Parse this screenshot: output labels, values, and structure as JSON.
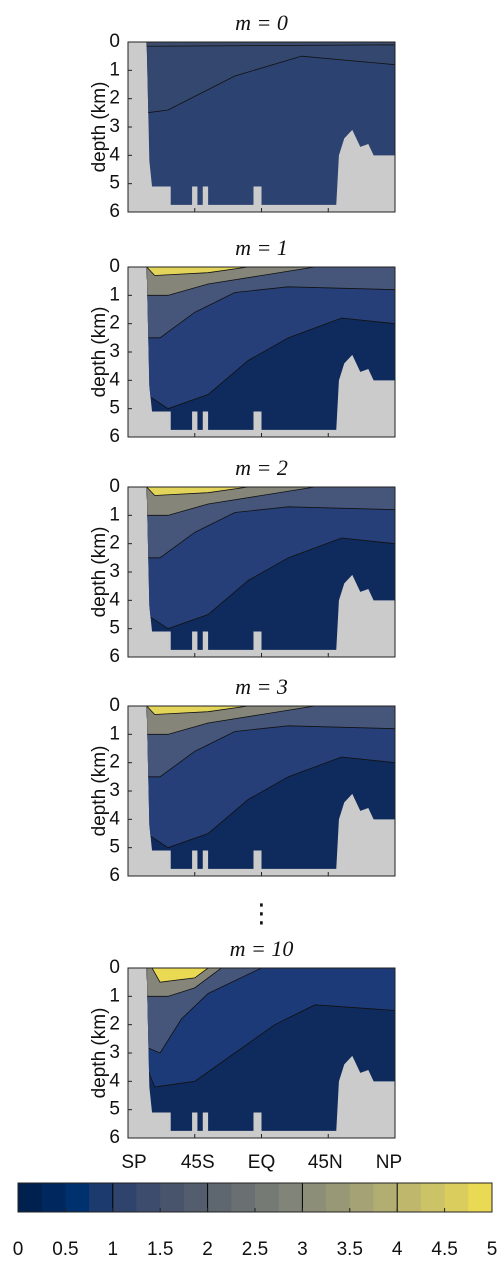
{
  "panels": [
    {
      "title": "m = 0"
    },
    {
      "title": "m = 1"
    },
    {
      "title": "m = 2"
    },
    {
      "title": "m = 3"
    },
    {
      "title": "m = 10"
    }
  ],
  "ellipsis": "⋮",
  "y_label": "depth (km)",
  "ylim": [
    0,
    6
  ],
  "yticks": [
    0,
    1,
    2,
    3,
    4,
    5,
    6
  ],
  "x_categories": [
    "SP",
    "45S",
    "EQ",
    "45N",
    "NP"
  ],
  "colorbar": {
    "lim": [
      0,
      5
    ],
    "ticks": [
      0,
      0.5,
      1,
      1.5,
      2,
      2.5,
      3,
      3.5,
      4,
      4.5,
      5
    ],
    "contour_levels": [
      1,
      2,
      3,
      4
    ],
    "colors": [
      "#00204d",
      "#00285f",
      "#00316f",
      "#1c3a6e",
      "#2f436d",
      "#3d4c6c",
      "#48546c",
      "#535d6d",
      "#5e666f",
      "#6a7072",
      "#757a75",
      "#818478",
      "#8c8e78",
      "#989877",
      "#a5a275",
      "#b2ad71",
      "#bfb76c",
      "#ccc266",
      "#dacd5e",
      "#ead953"
    ]
  }
}
